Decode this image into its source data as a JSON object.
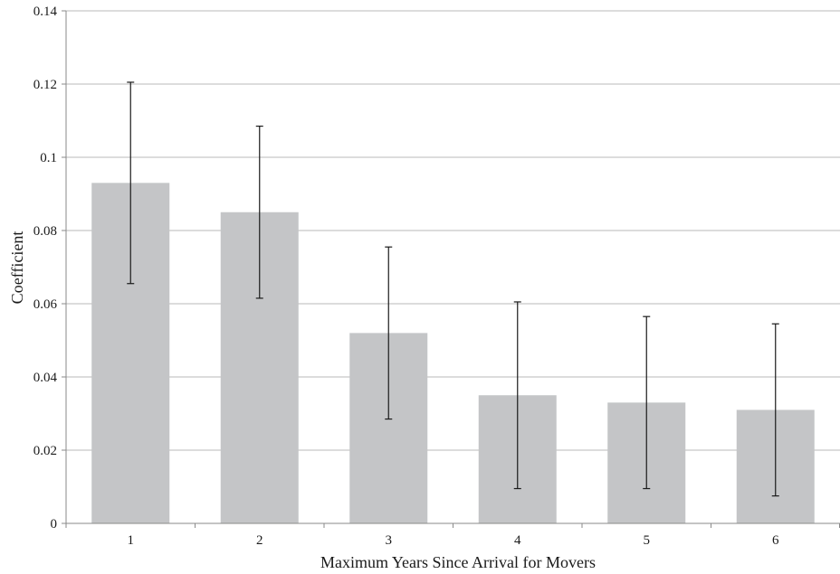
{
  "chart_data": {
    "type": "bar",
    "title": "",
    "xlabel": "Maximum Years Since Arrival for Movers",
    "ylabel": "Coefficient",
    "categories": [
      "1",
      "2",
      "3",
      "4",
      "5",
      "6"
    ],
    "values": [
      0.093,
      0.085,
      0.052,
      0.035,
      0.033,
      0.031
    ],
    "error_bars": {
      "lower": [
        0.0655,
        0.0615,
        0.0285,
        0.0095,
        0.0095,
        0.0075
      ],
      "upper": [
        0.1205,
        0.1085,
        0.0755,
        0.0605,
        0.0565,
        0.0545
      ]
    },
    "ylim": [
      0,
      0.14
    ],
    "yticks": [
      "0",
      "0.02",
      "0.04",
      "0.06",
      "0.08",
      "0.1",
      "0.12",
      "0.14"
    ],
    "ytick_values": [
      0,
      0.02,
      0.04,
      0.06,
      0.08,
      0.1,
      0.12,
      0.14
    ],
    "grid": true,
    "colors": {
      "bar": "#c4c5c7",
      "grid": "#b8b8b8",
      "axis": "#8a8a8a",
      "error_bar": "#1a1a1a"
    }
  }
}
